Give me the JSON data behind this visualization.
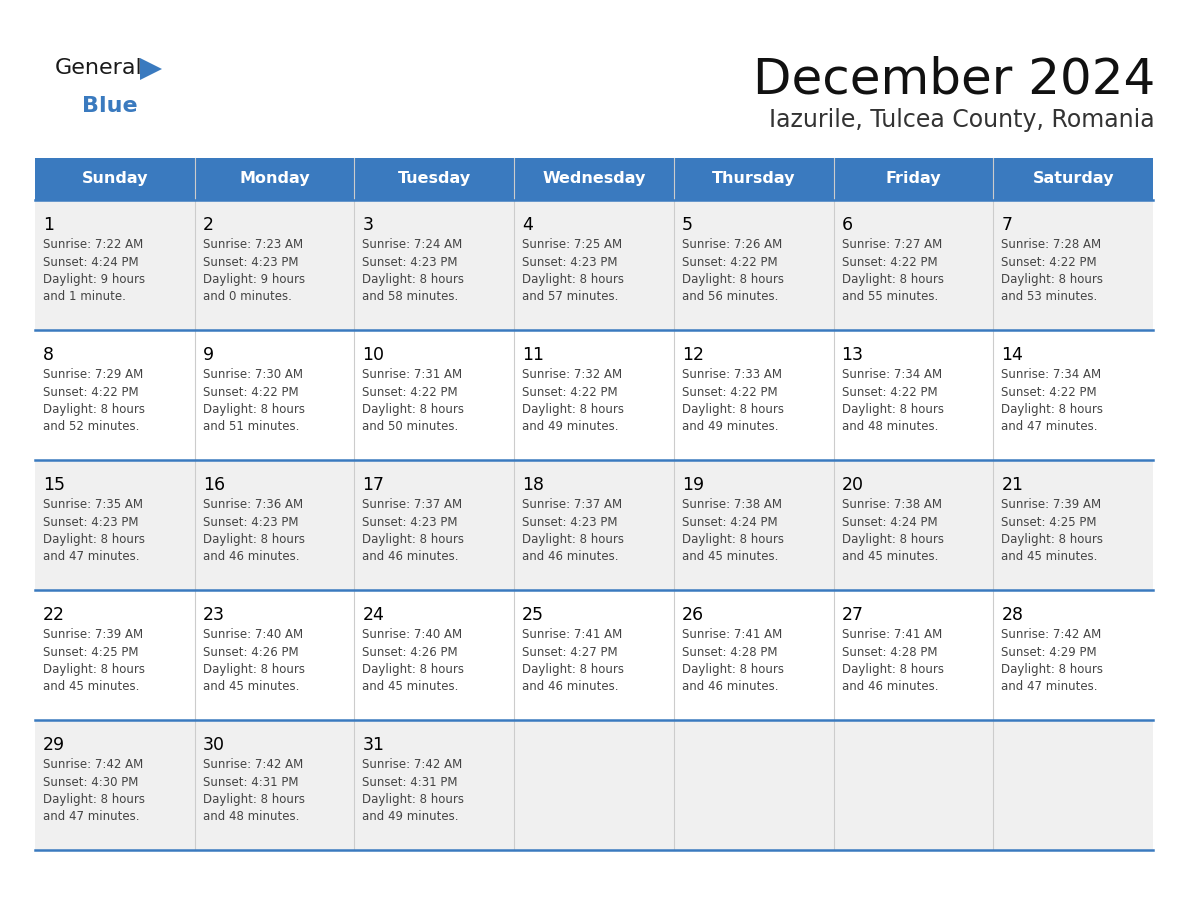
{
  "title": "December 2024",
  "subtitle": "Iazurile, Tulcea County, Romania",
  "header_color": "#3a7abf",
  "header_text_color": "#ffffff",
  "cell_bg_odd": "#f0f0f0",
  "cell_bg_even": "#ffffff",
  "day_number_color": "#000000",
  "cell_text_color": "#444444",
  "line_color": "#3a7abf",
  "days_of_week": [
    "Sunday",
    "Monday",
    "Tuesday",
    "Wednesday",
    "Thursday",
    "Friday",
    "Saturday"
  ],
  "weeks": [
    [
      {
        "day": "1",
        "sunrise": "7:22 AM",
        "sunset": "4:24 PM",
        "daylight": "9 hours\nand 1 minute."
      },
      {
        "day": "2",
        "sunrise": "7:23 AM",
        "sunset": "4:23 PM",
        "daylight": "9 hours\nand 0 minutes."
      },
      {
        "day": "3",
        "sunrise": "7:24 AM",
        "sunset": "4:23 PM",
        "daylight": "8 hours\nand 58 minutes."
      },
      {
        "day": "4",
        "sunrise": "7:25 AM",
        "sunset": "4:23 PM",
        "daylight": "8 hours\nand 57 minutes."
      },
      {
        "day": "5",
        "sunrise": "7:26 AM",
        "sunset": "4:22 PM",
        "daylight": "8 hours\nand 56 minutes."
      },
      {
        "day": "6",
        "sunrise": "7:27 AM",
        "sunset": "4:22 PM",
        "daylight": "8 hours\nand 55 minutes."
      },
      {
        "day": "7",
        "sunrise": "7:28 AM",
        "sunset": "4:22 PM",
        "daylight": "8 hours\nand 53 minutes."
      }
    ],
    [
      {
        "day": "8",
        "sunrise": "7:29 AM",
        "sunset": "4:22 PM",
        "daylight": "8 hours\nand 52 minutes."
      },
      {
        "day": "9",
        "sunrise": "7:30 AM",
        "sunset": "4:22 PM",
        "daylight": "8 hours\nand 51 minutes."
      },
      {
        "day": "10",
        "sunrise": "7:31 AM",
        "sunset": "4:22 PM",
        "daylight": "8 hours\nand 50 minutes."
      },
      {
        "day": "11",
        "sunrise": "7:32 AM",
        "sunset": "4:22 PM",
        "daylight": "8 hours\nand 49 minutes."
      },
      {
        "day": "12",
        "sunrise": "7:33 AM",
        "sunset": "4:22 PM",
        "daylight": "8 hours\nand 49 minutes."
      },
      {
        "day": "13",
        "sunrise": "7:34 AM",
        "sunset": "4:22 PM",
        "daylight": "8 hours\nand 48 minutes."
      },
      {
        "day": "14",
        "sunrise": "7:34 AM",
        "sunset": "4:22 PM",
        "daylight": "8 hours\nand 47 minutes."
      }
    ],
    [
      {
        "day": "15",
        "sunrise": "7:35 AM",
        "sunset": "4:23 PM",
        "daylight": "8 hours\nand 47 minutes."
      },
      {
        "day": "16",
        "sunrise": "7:36 AM",
        "sunset": "4:23 PM",
        "daylight": "8 hours\nand 46 minutes."
      },
      {
        "day": "17",
        "sunrise": "7:37 AM",
        "sunset": "4:23 PM",
        "daylight": "8 hours\nand 46 minutes."
      },
      {
        "day": "18",
        "sunrise": "7:37 AM",
        "sunset": "4:23 PM",
        "daylight": "8 hours\nand 46 minutes."
      },
      {
        "day": "19",
        "sunrise": "7:38 AM",
        "sunset": "4:24 PM",
        "daylight": "8 hours\nand 45 minutes."
      },
      {
        "day": "20",
        "sunrise": "7:38 AM",
        "sunset": "4:24 PM",
        "daylight": "8 hours\nand 45 minutes."
      },
      {
        "day": "21",
        "sunrise": "7:39 AM",
        "sunset": "4:25 PM",
        "daylight": "8 hours\nand 45 minutes."
      }
    ],
    [
      {
        "day": "22",
        "sunrise": "7:39 AM",
        "sunset": "4:25 PM",
        "daylight": "8 hours\nand 45 minutes."
      },
      {
        "day": "23",
        "sunrise": "7:40 AM",
        "sunset": "4:26 PM",
        "daylight": "8 hours\nand 45 minutes."
      },
      {
        "day": "24",
        "sunrise": "7:40 AM",
        "sunset": "4:26 PM",
        "daylight": "8 hours\nand 45 minutes."
      },
      {
        "day": "25",
        "sunrise": "7:41 AM",
        "sunset": "4:27 PM",
        "daylight": "8 hours\nand 46 minutes."
      },
      {
        "day": "26",
        "sunrise": "7:41 AM",
        "sunset": "4:28 PM",
        "daylight": "8 hours\nand 46 minutes."
      },
      {
        "day": "27",
        "sunrise": "7:41 AM",
        "sunset": "4:28 PM",
        "daylight": "8 hours\nand 46 minutes."
      },
      {
        "day": "28",
        "sunrise": "7:42 AM",
        "sunset": "4:29 PM",
        "daylight": "8 hours\nand 47 minutes."
      }
    ],
    [
      {
        "day": "29",
        "sunrise": "7:42 AM",
        "sunset": "4:30 PM",
        "daylight": "8 hours\nand 47 minutes."
      },
      {
        "day": "30",
        "sunrise": "7:42 AM",
        "sunset": "4:31 PM",
        "daylight": "8 hours\nand 48 minutes."
      },
      {
        "day": "31",
        "sunrise": "7:42 AM",
        "sunset": "4:31 PM",
        "daylight": "8 hours\nand 49 minutes."
      },
      null,
      null,
      null,
      null
    ]
  ],
  "logo_general_color": "#1a1a1a",
  "logo_blue_color": "#3a7abf",
  "logo_triangle_color": "#3a7abf"
}
